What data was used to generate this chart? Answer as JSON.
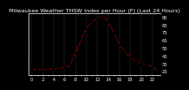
{
  "title": "Milwaukee Weather THSW Index per Hour (F) (Last 24 Hours)",
  "hours": [
    0,
    1,
    2,
    3,
    4,
    5,
    6,
    7,
    8,
    9,
    10,
    11,
    12,
    13,
    14,
    15,
    16,
    17,
    18,
    19,
    20,
    21,
    22,
    23
  ],
  "values": [
    28,
    27,
    27,
    27,
    28,
    28,
    30,
    32,
    48,
    65,
    80,
    88,
    93,
    95,
    88,
    75,
    60,
    50,
    43,
    38,
    35,
    33,
    31,
    25
  ],
  "line_color": "#ff0000",
  "marker_color": "#000000",
  "bg_color": "#000000",
  "plot_bg_color": "#000000",
  "grid_color": "#555555",
  "title_color": "#ffffff",
  "tick_color": "#ffffff",
  "ylim": [
    20,
    100
  ],
  "yticks": [
    25,
    35,
    45,
    55,
    65,
    75,
    85,
    95
  ],
  "ytick_labels": [
    "25",
    "35",
    "45",
    "55",
    "65",
    "75",
    "85",
    "95"
  ],
  "title_fontsize": 4.5,
  "tick_fontsize": 3.5,
  "line_width": 0.8,
  "marker_size": 2.0,
  "spine_color": "#ffffff"
}
